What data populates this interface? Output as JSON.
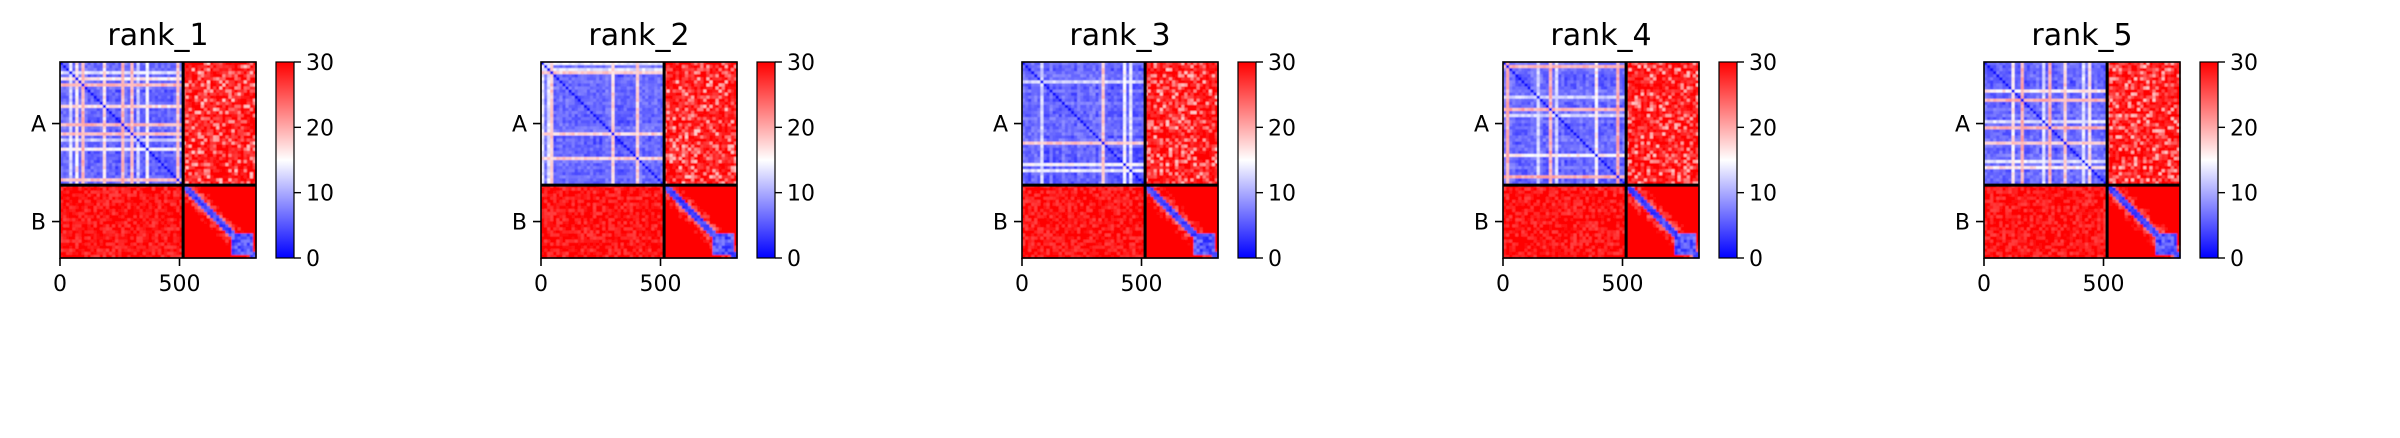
{
  "chart_data": [
    {
      "type": "heatmap",
      "title": "rank_1",
      "chains": [
        {
          "label": "A",
          "start": 0,
          "end": 515
        },
        {
          "label": "B",
          "start": 515,
          "end": 820
        }
      ],
      "x_ticks": [
        0,
        500
      ],
      "xlim": [
        0,
        820
      ],
      "colorbar": {
        "min": 0,
        "max": 30,
        "ticks": [
          0,
          10,
          20,
          30
        ],
        "colors": [
          "#0000ff",
          "#ffffff",
          "#ff0000"
        ]
      },
      "values_summary": {
        "A-A": "mostly 0-10 (blue), diagonal 0",
        "A-B": 30,
        "B-A": 30,
        "B-B": "diagonal ~0, blocks near 0 at 715-800"
      }
    },
    {
      "type": "heatmap",
      "title": "rank_2",
      "chains": [
        {
          "label": "A",
          "start": 0,
          "end": 515
        },
        {
          "label": "B",
          "start": 515,
          "end": 820
        }
      ],
      "x_ticks": [
        0,
        500
      ],
      "xlim": [
        0,
        820
      ],
      "colorbar": {
        "min": 0,
        "max": 30,
        "ticks": [
          0,
          10,
          20,
          30
        ],
        "colors": [
          "#0000ff",
          "#ffffff",
          "#ff0000"
        ]
      },
      "values_summary": {
        "A-A": "mostly 0-10 (blue), diagonal 0",
        "A-B": 30,
        "B-A": 30,
        "B-B": "diagonal ~0, blocks near 0 at 715-800"
      }
    },
    {
      "type": "heatmap",
      "title": "rank_3",
      "chains": [
        {
          "label": "A",
          "start": 0,
          "end": 515
        },
        {
          "label": "B",
          "start": 515,
          "end": 820
        }
      ],
      "x_ticks": [
        0,
        500
      ],
      "xlim": [
        0,
        820
      ],
      "colorbar": {
        "min": 0,
        "max": 30,
        "ticks": [
          0,
          10,
          20,
          30
        ],
        "colors": [
          "#0000ff",
          "#ffffff",
          "#ff0000"
        ]
      },
      "values_summary": {
        "A-A": "mostly 0-10 (blue), diagonal 0",
        "A-B": 30,
        "B-A": 30,
        "B-B": "diagonal ~0, blocks near 0 at 715-800"
      }
    },
    {
      "type": "heatmap",
      "title": "rank_4",
      "chains": [
        {
          "label": "A",
          "start": 0,
          "end": 515
        },
        {
          "label": "B",
          "start": 515,
          "end": 820
        }
      ],
      "x_ticks": [
        0,
        500
      ],
      "xlim": [
        0,
        820
      ],
      "colorbar": {
        "min": 0,
        "max": 30,
        "ticks": [
          0,
          10,
          20,
          30
        ],
        "colors": [
          "#0000ff",
          "#ffffff",
          "#ff0000"
        ]
      },
      "values_summary": {
        "A-A": "mostly 0-10 (blue), diagonal 0",
        "A-B": 30,
        "B-A": 30,
        "B-B": "diagonal ~0, blocks near 0 at 715-800"
      }
    },
    {
      "type": "heatmap",
      "title": "rank_5",
      "chains": [
        {
          "label": "A",
          "start": 0,
          "end": 515
        },
        {
          "label": "B",
          "start": 515,
          "end": 820
        }
      ],
      "x_ticks": [
        0,
        500
      ],
      "xlim": [
        0,
        820
      ],
      "colorbar": {
        "min": 0,
        "max": 30,
        "ticks": [
          0,
          10,
          20,
          30
        ],
        "colors": [
          "#0000ff",
          "#ffffff",
          "#ff0000"
        ]
      },
      "values_summary": {
        "A-A": "mostly 0-10 (blue), diagonal 0",
        "A-B": 30,
        "B-A": 30,
        "B-B": "diagonal ~0, blocks near 0 at 715-800"
      }
    }
  ]
}
